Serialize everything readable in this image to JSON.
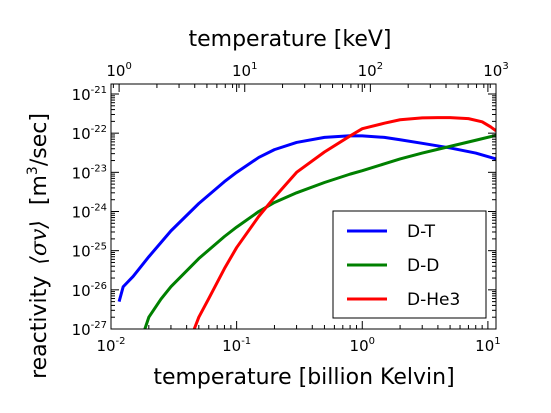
{
  "chart_data": {
    "type": "line",
    "x_scale": "log",
    "y_scale": "log",
    "xlabel": "temperature  [billion Kelvin]",
    "x2label": "temperature  [keV]",
    "ylabel_prefix": "reactivity",
    "ylabel_math": "⟨σv⟩",
    "ylabel_unit_before": "[m",
    "ylabel_unit_exp": "3",
    "ylabel_unit_after": "/sec]",
    "xlim": [
      0.01,
      11.6
    ],
    "ylim": [
      1e-27,
      1.8e-21
    ],
    "x2lim": [
      0.862,
      1000
    ],
    "x_ticks": [
      {
        "value": 0.01,
        "base": "10",
        "exp": "-2"
      },
      {
        "value": 0.1,
        "base": "10",
        "exp": "-1"
      },
      {
        "value": 1,
        "base": "10",
        "exp": "0"
      },
      {
        "value": 10,
        "base": "10",
        "exp": "1"
      }
    ],
    "x2_ticks": [
      {
        "value": 1,
        "base": "10",
        "exp": "0"
      },
      {
        "value": 10,
        "base": "10",
        "exp": "1"
      },
      {
        "value": 100,
        "base": "10",
        "exp": "2"
      },
      {
        "value": 1000,
        "base": "10",
        "exp": "3"
      }
    ],
    "y_ticks": [
      {
        "value": 1e-27,
        "base": "10",
        "exp": "-27"
      },
      {
        "value": 1e-26,
        "base": "10",
        "exp": "-26"
      },
      {
        "value": 1e-25,
        "base": "10",
        "exp": "-25"
      },
      {
        "value": 1e-24,
        "base": "10",
        "exp": "-24"
      },
      {
        "value": 1e-23,
        "base": "10",
        "exp": "-23"
      },
      {
        "value": 1e-22,
        "base": "10",
        "exp": "-22"
      },
      {
        "value": 1e-21,
        "base": "10",
        "exp": "-21"
      }
    ],
    "legend_position": "lower-right",
    "grid": false,
    "series": [
      {
        "name": "D-T",
        "color": "#0000ff",
        "x": [
          0.0116,
          0.0125,
          0.015,
          0.02,
          0.03,
          0.05,
          0.08,
          0.1,
          0.15,
          0.2,
          0.3,
          0.5,
          0.8,
          1.0,
          1.5,
          2,
          3,
          5,
          8,
          11.6
        ],
        "y": [
          5e-27,
          1.2e-26,
          2.2e-26,
          7e-26,
          3.2e-25,
          1.6e-24,
          5.8e-24,
          1e-23,
          2.4e-23,
          3.8e-23,
          5.8e-23,
          7.8e-23,
          8.6e-23,
          8.5e-23,
          7.8e-23,
          6.8e-23,
          5.5e-23,
          4.2e-23,
          3.1e-23,
          2.2e-23
        ]
      },
      {
        "name": "D-D",
        "color": "#008000",
        "x": [
          0.0186,
          0.02,
          0.025,
          0.03,
          0.05,
          0.08,
          0.1,
          0.15,
          0.2,
          0.3,
          0.5,
          0.8,
          1.0,
          1.5,
          2,
          3,
          5,
          8,
          11.6
        ],
        "y": [
          1e-27,
          2e-27,
          5.8e-27,
          1.2e-26,
          6.3e-26,
          2.3e-25,
          4e-25,
          1e-24,
          1.7e-24,
          3e-24,
          5.5e-24,
          9e-24,
          1.1e-23,
          1.65e-23,
          2.2e-23,
          3.1e-23,
          4.6e-23,
          6.6e-23,
          8.8e-23
        ]
      },
      {
        "name": "D-He3",
        "color": "#ff0000",
        "x": [
          0.046,
          0.05,
          0.06,
          0.08,
          0.1,
          0.15,
          0.2,
          0.3,
          0.5,
          0.8,
          1.0,
          1.5,
          2,
          3,
          4,
          5,
          7,
          9,
          10.5,
          11.6
        ],
        "y": [
          1e-27,
          2e-27,
          6e-27,
          3.5e-26,
          1.2e-25,
          7.5e-25,
          2.3e-24,
          1e-23,
          3.3e-23,
          8.5e-23,
          1.3e-22,
          1.8e-22,
          2.2e-22,
          2.45e-22,
          2.5e-22,
          2.5e-22,
          2.35e-22,
          1.95e-22,
          1.45e-22,
          1.15e-22
        ]
      }
    ]
  }
}
